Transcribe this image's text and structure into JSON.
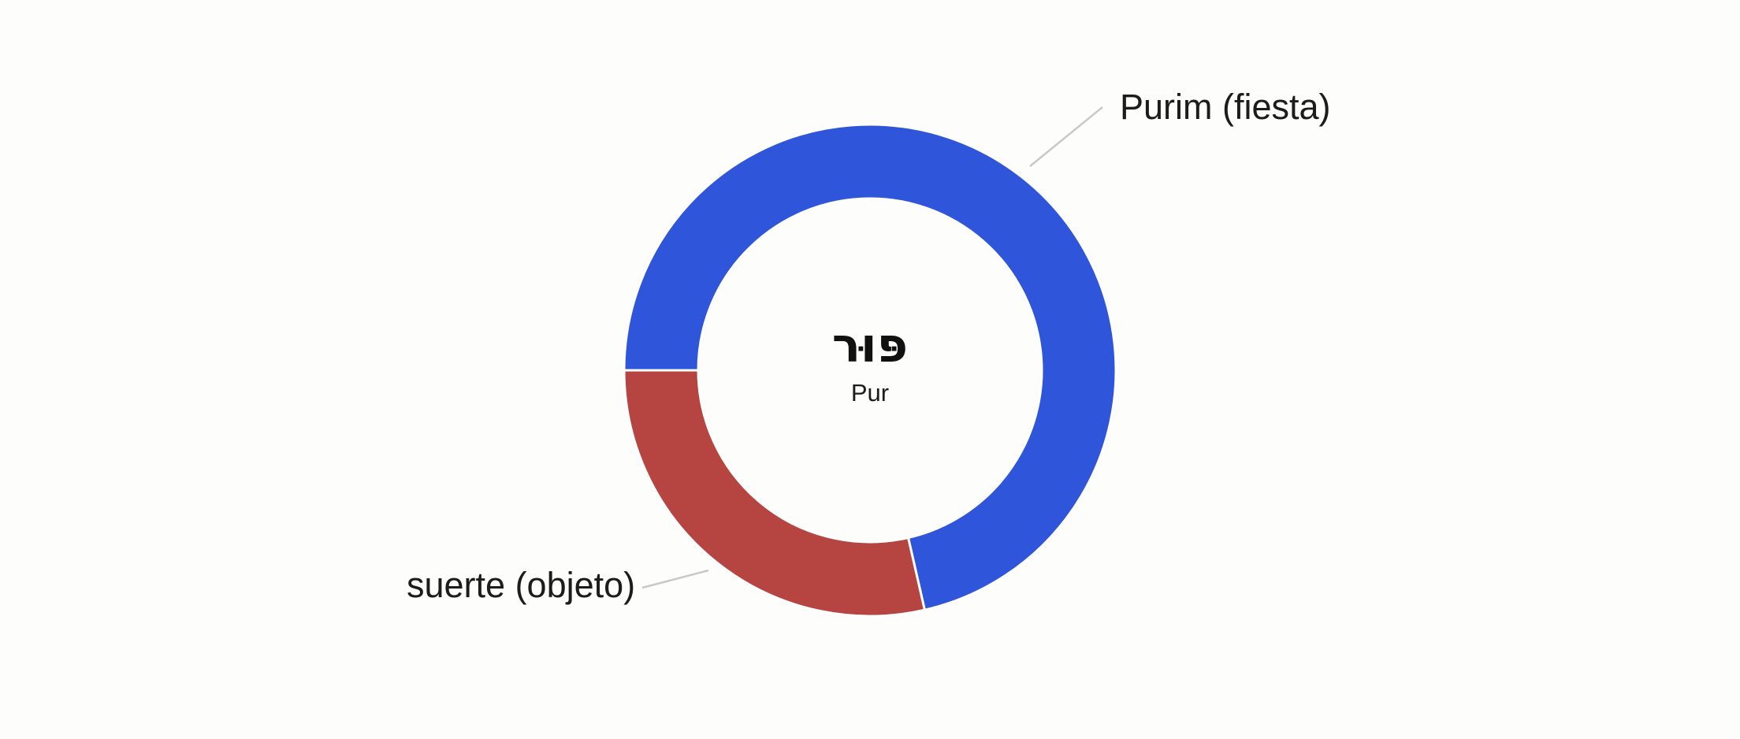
{
  "chart_data": {
    "type": "pie",
    "variant": "donut",
    "categories": [
      "Purim (fiesta)",
      "suerte (objeto)"
    ],
    "values": [
      5,
      2
    ],
    "percent_estimates": [
      71.4,
      28.6
    ],
    "colors": [
      "#2E55DA",
      "#B64441"
    ],
    "start_angle_clockwise_from_top_deg": 270,
    "sweep_direction": "clockwise",
    "separator": {
      "color": "#FFFFFF",
      "width": 3
    },
    "center_label": {
      "hebrew": "פּוּר",
      "latin": "Pur"
    },
    "title": "",
    "legend": "callout-labels",
    "leader_line_color": "#C8C8C8",
    "background": "#FDFDFB",
    "text_color": "#1C1C1C"
  }
}
